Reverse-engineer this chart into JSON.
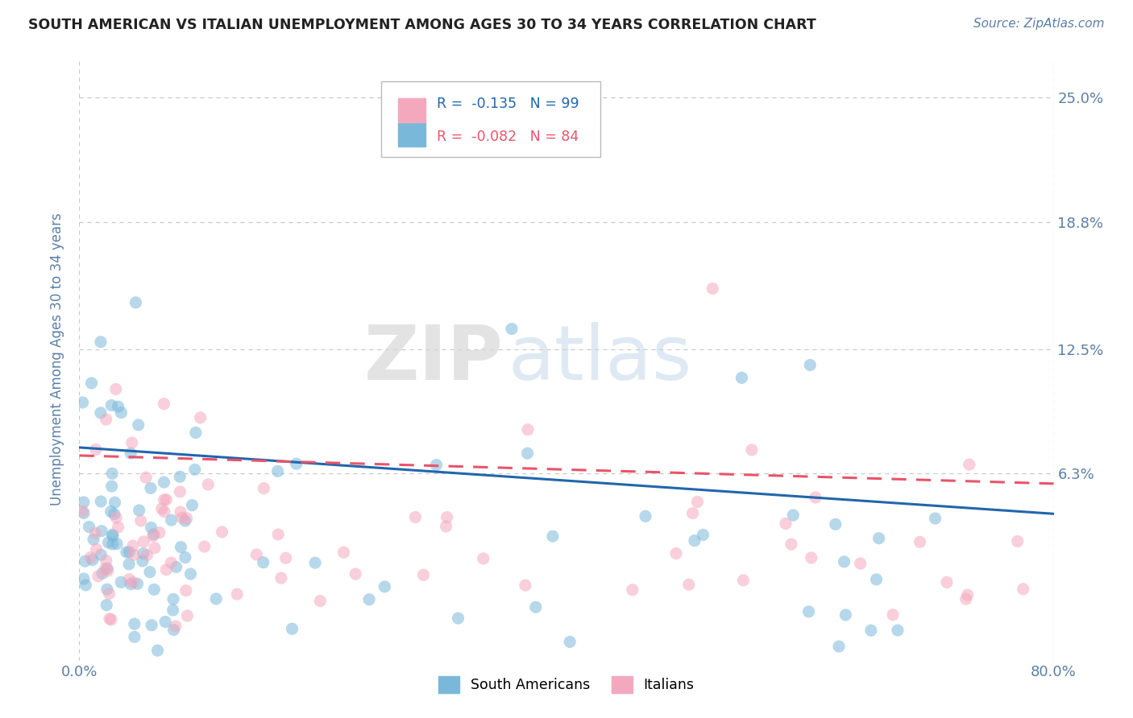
{
  "title": "SOUTH AMERICAN VS ITALIAN UNEMPLOYMENT AMONG AGES 30 TO 34 YEARS CORRELATION CHART",
  "source": "Source: ZipAtlas.com",
  "ylabel": "Unemployment Among Ages 30 to 34 years",
  "xlim": [
    0.0,
    0.8
  ],
  "ylim": [
    -0.03,
    0.27
  ],
  "yticks": [
    0.063,
    0.125,
    0.188,
    0.25
  ],
  "ytick_labels": [
    "6.3%",
    "12.5%",
    "18.8%",
    "25.0%"
  ],
  "blue_color": "#7ab8d9",
  "pink_color": "#f4a8be",
  "blue_line_color": "#2166ac",
  "pink_line_color": "#e8546a",
  "title_color": "#222222",
  "tick_label_color": "#5b7fa6",
  "watermark_zip": "ZIP",
  "watermark_atlas": "atlas",
  "legend_r1": "-0.135",
  "legend_n1": "99",
  "legend_r2": "-0.082",
  "legend_n2": "84",
  "legend_label1": "South Americans",
  "legend_label2": "Italians",
  "n1": 99,
  "n2": 84,
  "blue_trend": [
    0.0,
    0.076,
    0.8,
    0.043
  ],
  "pink_trend": [
    0.0,
    0.072,
    0.8,
    0.058
  ],
  "grid_color": "#c8c8c8",
  "background_color": "#ffffff"
}
